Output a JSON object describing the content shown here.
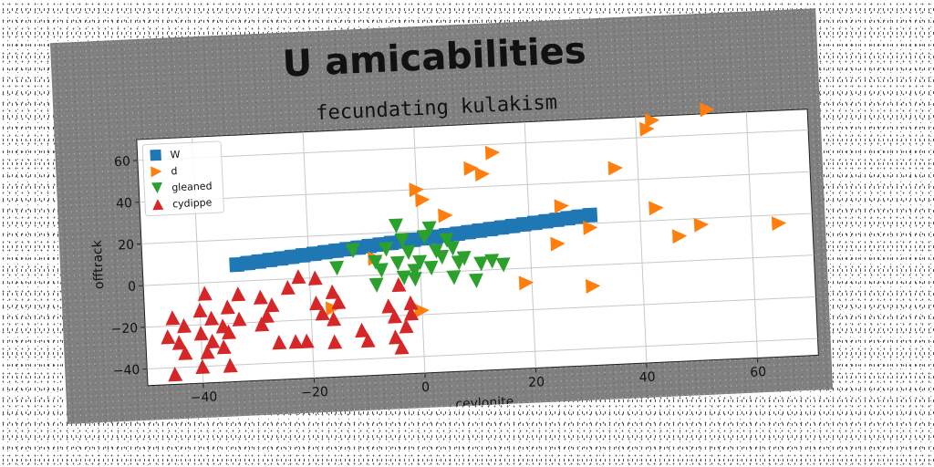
{
  "chart_data": {
    "type": "scatter",
    "title": "U amicabilities",
    "subtitle": "fecundating kulakism",
    "xlabel": "ceylonite",
    "ylabel": "offtrack",
    "xlim": [
      -50,
      71
    ],
    "ylim": [
      -48,
      70
    ],
    "xticks": [
      -40,
      -20,
      0,
      20,
      40,
      60
    ],
    "yticks": [
      -40,
      -20,
      0,
      20,
      40,
      60
    ],
    "xtick_labels": [
      "−40",
      "−20",
      "0",
      "20",
      "40",
      "60"
    ],
    "ytick_labels": [
      "−40",
      "−20",
      "0",
      "20",
      "40",
      "60"
    ],
    "grid": true,
    "legend_position": "top-left",
    "series": [
      {
        "name": "W",
        "marker": "square",
        "color": "#1f77b4",
        "points": [
          [
            -33,
            8
          ],
          [
            -31,
            8.5
          ],
          [
            -29,
            9
          ],
          [
            -27,
            9.5
          ],
          [
            -25,
            10
          ],
          [
            -23,
            10.5
          ],
          [
            -21,
            11
          ],
          [
            -19,
            11.5
          ],
          [
            -17,
            12
          ],
          [
            -15,
            12.5
          ],
          [
            -13,
            13
          ],
          [
            -11,
            13.5
          ],
          [
            -9,
            14
          ],
          [
            -7,
            14.5
          ],
          [
            -5,
            15
          ],
          [
            -3,
            15.5
          ],
          [
            -1,
            16
          ],
          [
            1,
            16.5
          ],
          [
            3,
            17
          ],
          [
            5,
            17.5
          ],
          [
            7,
            18
          ],
          [
            9,
            18.5
          ],
          [
            11,
            19
          ],
          [
            13,
            19.5
          ],
          [
            15,
            20
          ],
          [
            17,
            20.5
          ],
          [
            19,
            21
          ],
          [
            21,
            21.5
          ],
          [
            23,
            22
          ],
          [
            25,
            22.5
          ],
          [
            27,
            23
          ],
          [
            29,
            23.5
          ],
          [
            31,
            24
          ]
        ]
      },
      {
        "name": "d",
        "marker": "triangle-right",
        "color": "#ff7f0e",
        "points": [
          [
            43,
            68
          ],
          [
            53,
            72
          ],
          [
            42,
            64
          ],
          [
            14,
            56
          ],
          [
            10,
            49
          ],
          [
            12,
            46
          ],
          [
            36,
            46
          ],
          [
            0,
            40
          ],
          [
            1,
            35
          ],
          [
            5,
            27
          ],
          [
            26,
            29
          ],
          [
            43,
            26
          ],
          [
            31,
            18
          ],
          [
            51,
            17
          ],
          [
            65,
            16
          ],
          [
            47,
            12
          ],
          [
            25,
            11
          ],
          [
            -8,
            8
          ],
          [
            19,
            -7
          ],
          [
            31,
            -10
          ],
          [
            -16,
            -15
          ],
          [
            0,
            -18
          ]
        ]
      },
      {
        "name": "gleaned",
        "marker": "triangle-down",
        "color": "#2ca02c",
        "points": [
          [
            -4,
            23
          ],
          [
            2,
            21
          ],
          [
            -3,
            16
          ],
          [
            1,
            17
          ],
          [
            5,
            15
          ],
          [
            -12,
            12
          ],
          [
            -6,
            12
          ],
          [
            -2,
            10
          ],
          [
            3,
            10
          ],
          [
            6,
            11
          ],
          [
            -8,
            6
          ],
          [
            -4,
            5
          ],
          [
            0,
            5
          ],
          [
            4,
            7
          ],
          [
            8,
            6
          ],
          [
            -15,
            4
          ],
          [
            -7,
            2
          ],
          [
            -1,
            1
          ],
          [
            2,
            2
          ],
          [
            7,
            4
          ],
          [
            11,
            3
          ],
          [
            13,
            4
          ],
          [
            15,
            2
          ],
          [
            -3,
            -2
          ],
          [
            -8,
            -5
          ],
          [
            -1,
            -3
          ],
          [
            6,
            -3
          ],
          [
            10,
            -5
          ]
        ]
      },
      {
        "name": "cydippe",
        "marker": "triangle-up",
        "color": "#d62728",
        "points": [
          [
            -22,
            1
          ],
          [
            -19,
            0
          ],
          [
            -39,
            -5
          ],
          [
            -33,
            -6
          ],
          [
            -24,
            -4
          ],
          [
            -16,
            -7
          ],
          [
            -4,
            -5
          ],
          [
            -29,
            -8
          ],
          [
            -40,
            -13
          ],
          [
            -35,
            -12
          ],
          [
            -27,
            -12
          ],
          [
            -19,
            -12
          ],
          [
            -15,
            -12
          ],
          [
            -45,
            -16
          ],
          [
            -38,
            -17
          ],
          [
            -33,
            -18
          ],
          [
            -28,
            -17
          ],
          [
            -18,
            -17
          ],
          [
            -6,
            -15
          ],
          [
            -2,
            -14
          ],
          [
            -43,
            -20
          ],
          [
            -36,
            -21
          ],
          [
            -29,
            -21
          ],
          [
            -16,
            -20
          ],
          [
            -5,
            -20
          ],
          [
            -2,
            -19
          ],
          [
            -46,
            -25
          ],
          [
            -40,
            -24
          ],
          [
            -35,
            -24
          ],
          [
            -11,
            -26
          ],
          [
            -3,
            -25
          ],
          [
            -44,
            -28
          ],
          [
            -38,
            -28
          ],
          [
            -26,
            -30
          ],
          [
            -23,
            -30
          ],
          [
            -21,
            -30
          ],
          [
            -16,
            -31
          ],
          [
            -10,
            -31
          ],
          [
            -5,
            -30
          ],
          [
            -43,
            -33
          ],
          [
            -39,
            -33
          ],
          [
            -36,
            -31
          ],
          [
            -4,
            -35
          ],
          [
            -40,
            -40
          ],
          [
            -35,
            -40
          ],
          [
            -45,
            -43
          ]
        ]
      }
    ]
  }
}
